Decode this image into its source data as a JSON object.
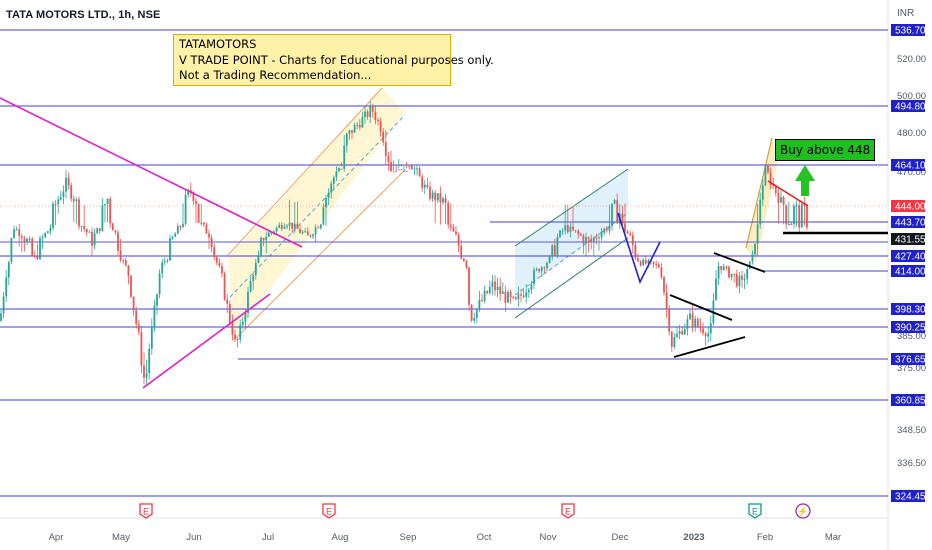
{
  "header": {
    "symbol": "TATA MOTORS LTD., 1h, NSE",
    "currency": "INR"
  },
  "note": {
    "line1": "TATAMOTORS",
    "line2": "V TRADE POINT - Charts for Educational purposes only.",
    "line3": "Not a Trading Recommendation..."
  },
  "buy_label": "Buy above 448",
  "colors": {
    "up": "#26a69a",
    "down": "#ef5350",
    "level_line": "#3f3fd6",
    "level_tag": "#2020c8",
    "trendline": "#e021c8",
    "red_line": "#e02020",
    "black_line": "#000000",
    "last_price_tag": "#131722",
    "price_tag": "#f23645",
    "arrow": "#22c322"
  },
  "chart_data": {
    "type": "candlestick",
    "title": "TATA MOTORS LTD., 1h, NSE",
    "ylim": [
      318,
      545
    ],
    "y_ticks": [
      336.5,
      348.5,
      375,
      385,
      470,
      480,
      500,
      520
    ],
    "y_tick_labels": [
      "336.50",
      "348.50",
      "375.00",
      "385.00",
      "470.00",
      "480.00",
      "500.00",
      "520.00"
    ],
    "x_labels": [
      "Apr",
      "May",
      "Jun",
      "Jul",
      "Aug",
      "Sep",
      "Oct",
      "Nov",
      "Dec",
      "2023",
      "Feb",
      "Mar"
    ],
    "horizontal_levels": [
      {
        "label": "536.70",
        "value": 536.7
      },
      {
        "label": "494.80",
        "value": 494.8
      },
      {
        "label": "464.10",
        "value": 464.1
      },
      {
        "label": "427.40",
        "value": 427.4
      },
      {
        "label": "414.00",
        "value": 414.0
      },
      {
        "label": "398.30",
        "value": 398.3
      },
      {
        "label": "390.25",
        "value": 390.25
      },
      {
        "label": "376.65",
        "value": 376.65
      },
      {
        "label": "360.85",
        "value": 360.85
      },
      {
        "label": "324.45",
        "value": 324.45
      }
    ],
    "other_tags": [
      {
        "label": "444.00",
        "value": 444.0,
        "kind": "price"
      },
      {
        "label": "443.70",
        "value": 443.7,
        "kind": "level"
      },
      {
        "label": "431.55",
        "value": 431.55,
        "kind": "last"
      }
    ],
    "price_anchors": [
      {
        "x": 0,
        "y": 393
      },
      {
        "x": 14,
        "y": 440
      },
      {
        "x": 35,
        "y": 425
      },
      {
        "x": 66,
        "y": 455
      },
      {
        "x": 92,
        "y": 432
      },
      {
        "x": 108,
        "y": 448
      },
      {
        "x": 128,
        "y": 414
      },
      {
        "x": 145,
        "y": 368
      },
      {
        "x": 162,
        "y": 420
      },
      {
        "x": 190,
        "y": 452
      },
      {
        "x": 212,
        "y": 432
      },
      {
        "x": 236,
        "y": 380
      },
      {
        "x": 262,
        "y": 432
      },
      {
        "x": 286,
        "y": 444
      },
      {
        "x": 308,
        "y": 433
      },
      {
        "x": 330,
        "y": 452
      },
      {
        "x": 346,
        "y": 478
      },
      {
        "x": 372,
        "y": 493
      },
      {
        "x": 392,
        "y": 470
      },
      {
        "x": 410,
        "y": 466
      },
      {
        "x": 428,
        "y": 450
      },
      {
        "x": 444,
        "y": 446
      },
      {
        "x": 466,
        "y": 422
      },
      {
        "x": 470,
        "y": 394
      },
      {
        "x": 492,
        "y": 408
      },
      {
        "x": 515,
        "y": 400
      },
      {
        "x": 545,
        "y": 420
      },
      {
        "x": 565,
        "y": 440
      },
      {
        "x": 590,
        "y": 430
      },
      {
        "x": 618,
        "y": 446
      },
      {
        "x": 640,
        "y": 422
      },
      {
        "x": 660,
        "y": 418
      },
      {
        "x": 672,
        "y": 382
      },
      {
        "x": 690,
        "y": 394
      },
      {
        "x": 710,
        "y": 386
      },
      {
        "x": 718,
        "y": 419
      },
      {
        "x": 742,
        "y": 408
      },
      {
        "x": 752,
        "y": 424
      },
      {
        "x": 765,
        "y": 462
      },
      {
        "x": 782,
        "y": 445
      },
      {
        "x": 800,
        "y": 442
      }
    ],
    "events": [
      {
        "x": 146,
        "label": "E",
        "type": "earnings"
      },
      {
        "x": 329,
        "label": "E",
        "type": "earnings"
      },
      {
        "x": 568,
        "label": "E",
        "type": "earnings"
      },
      {
        "x": 755,
        "label": "E",
        "type": "earnings-upcoming"
      },
      {
        "x": 803,
        "label": "⚡",
        "type": "dividend"
      }
    ]
  }
}
